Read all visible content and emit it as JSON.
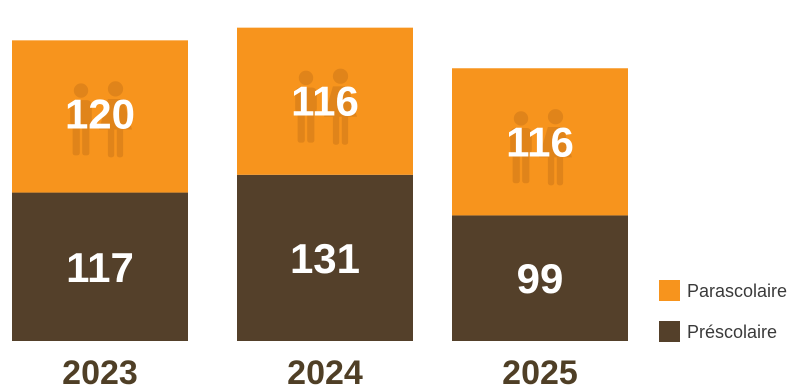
{
  "chart_data": {
    "type": "bar",
    "stacked": true,
    "categories": [
      "2023",
      "2024",
      "2025"
    ],
    "series": [
      {
        "name": "Préscolaire",
        "values": [
          117,
          131,
          99
        ],
        "color": "#54402a"
      },
      {
        "name": "Parascolaire",
        "values": [
          120,
          116,
          116
        ],
        "color": "#f7941d"
      }
    ],
    "icon": "people-icon",
    "legend_position": "bottom-right",
    "grid": false
  }
}
